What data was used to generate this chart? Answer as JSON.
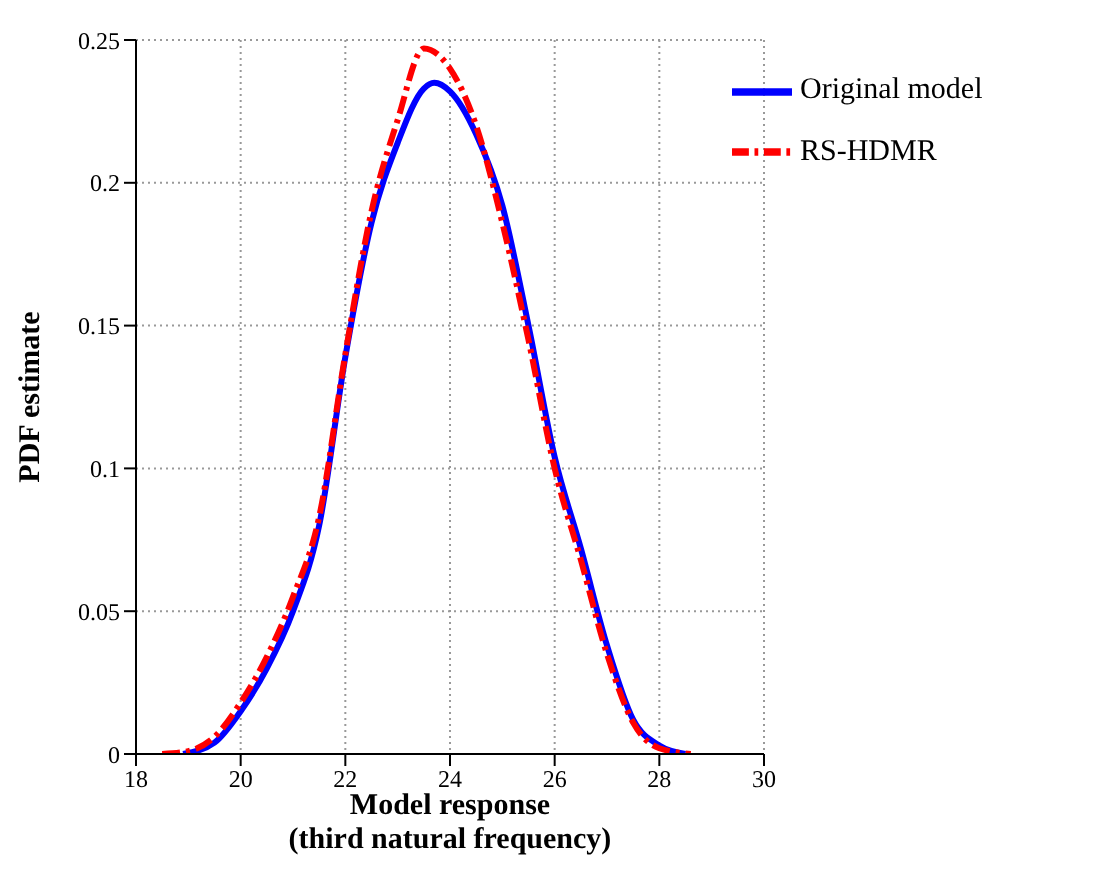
{
  "chart_data": {
    "type": "line",
    "xlabel": "Model response\n(third natural frequency)",
    "ylabel": "PDF estimate",
    "xlim": [
      18,
      30
    ],
    "xticks": [
      18,
      20,
      22,
      24,
      26,
      28,
      30
    ],
    "ylim": [
      0,
      0.25
    ],
    "yticks": [
      0,
      0.05,
      0.1,
      0.15,
      0.2,
      0.25
    ],
    "grid": true,
    "legend": "top right",
    "marker": "none",
    "series": [
      {
        "name": "Original model",
        "color": "#0000ff",
        "line_style": "solid",
        "x": [
          18.9,
          19.5,
          20,
          20.5,
          21,
          21.5,
          22,
          22.5,
          23,
          23.5,
          23.7,
          24,
          24.5,
          25,
          25.5,
          26,
          26.5,
          27,
          27.5,
          28,
          28.5
        ],
        "values": [
          0,
          0.004,
          0.015,
          0.03,
          0.05,
          0.08,
          0.139,
          0.186,
          0.214,
          0.233,
          0.235,
          0.232,
          0.217,
          0.192,
          0.15,
          0.104,
          0.072,
          0.038,
          0.012,
          0.003,
          0
        ]
      },
      {
        "name": "RS-HDMR",
        "color": "#ff0000",
        "line_style": "dashed",
        "x": [
          18.5,
          19,
          19.5,
          20,
          20.5,
          21,
          21.5,
          22,
          22.5,
          23,
          23.5,
          24,
          24.5,
          25,
          25.5,
          26,
          26.5,
          27,
          27.5,
          28,
          28.6
        ],
        "values": [
          0,
          0.001,
          0.006,
          0.018,
          0.034,
          0.055,
          0.083,
          0.14,
          0.19,
          0.222,
          0.247,
          0.24,
          0.22,
          0.186,
          0.145,
          0.1,
          0.068,
          0.035,
          0.011,
          0.002,
          0
        ]
      }
    ]
  }
}
